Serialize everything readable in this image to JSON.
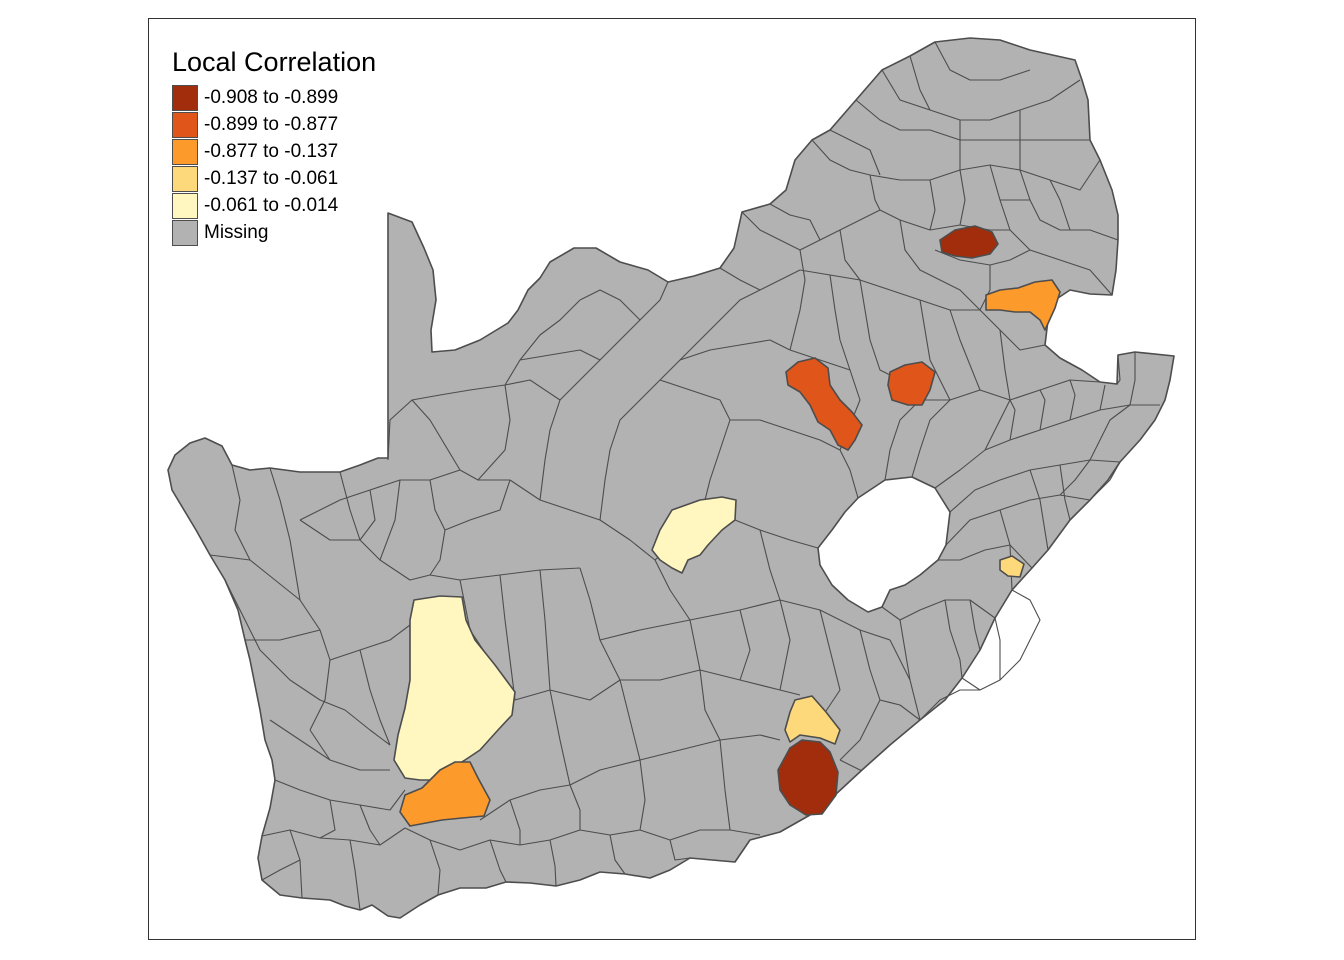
{
  "legend": {
    "title": "Local Correlation",
    "items": [
      {
        "label": "-0.908 to -0.899",
        "color": "#a12d0c"
      },
      {
        "label": "-0.899 to -0.877",
        "color": "#e05519"
      },
      {
        "label": "-0.877 to -0.137",
        "color": "#fd9a2c"
      },
      {
        "label": "-0.137 to -0.061",
        "color": "#fed97c"
      },
      {
        "label": "-0.061 to -0.014",
        "color": "#fff7bf"
      },
      {
        "label": "Missing",
        "color": "#b2b2b2"
      }
    ]
  },
  "map": {
    "background_color": "#ffffff",
    "missing_color": "#b2b2b2",
    "border_color": "#4d4d4d"
  }
}
